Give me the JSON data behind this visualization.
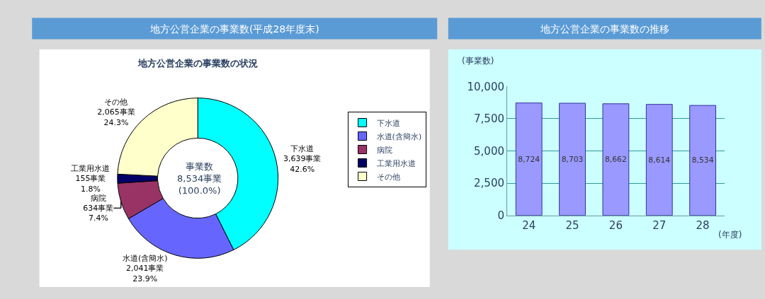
{
  "chart_data": [
    {
      "type": "donut",
      "title": "地方公営企業の事業数(平成28年度末)",
      "subtitle": "地方公営企業の事業数の状況",
      "categories": [
        "下水道",
        "水道(含簡水)",
        "病院",
        "工業用水道",
        "その他"
      ],
      "values": [
        3639,
        2041,
        634,
        155,
        2065
      ],
      "value_labels": [
        "3,639事業\n42.6%",
        "2,041事業\n23.9%",
        "634事業\n7.4%",
        "155事業\n1.8%",
        "2,065事業\n24.3%"
      ],
      "colors": [
        "#00ffff",
        "#6666ff",
        "#993366",
        "#000066",
        "#ffffcc"
      ],
      "annotations": [
        "事業数\n8,534事業\n(100.0%)"
      ],
      "legend": "right"
    },
    {
      "type": "bar",
      "title": "地方公営企業の事業数の推移",
      "ylabel": "(事業数)",
      "xlabel": "(年度)",
      "categories": [
        "24",
        "25",
        "26",
        "27",
        "28"
      ],
      "values": [
        8724,
        8703,
        8662,
        8614,
        8534
      ],
      "color": "#9999ff",
      "ylim": [
        0,
        10000
      ],
      "yticks": [
        0,
        {
          "value": 2500,
          "label": "2,500"
        },
        {
          "value": 5000,
          "label": "5,000"
        },
        {
          "value": 7500,
          "label": "7,500"
        },
        {
          "value": 10000,
          "label": "10,000"
        }
      ],
      "value_labels": [
        "8,724",
        "8,703",
        "8,662",
        "8,614",
        "8,534"
      ],
      "grid": "y"
    }
  ]
}
